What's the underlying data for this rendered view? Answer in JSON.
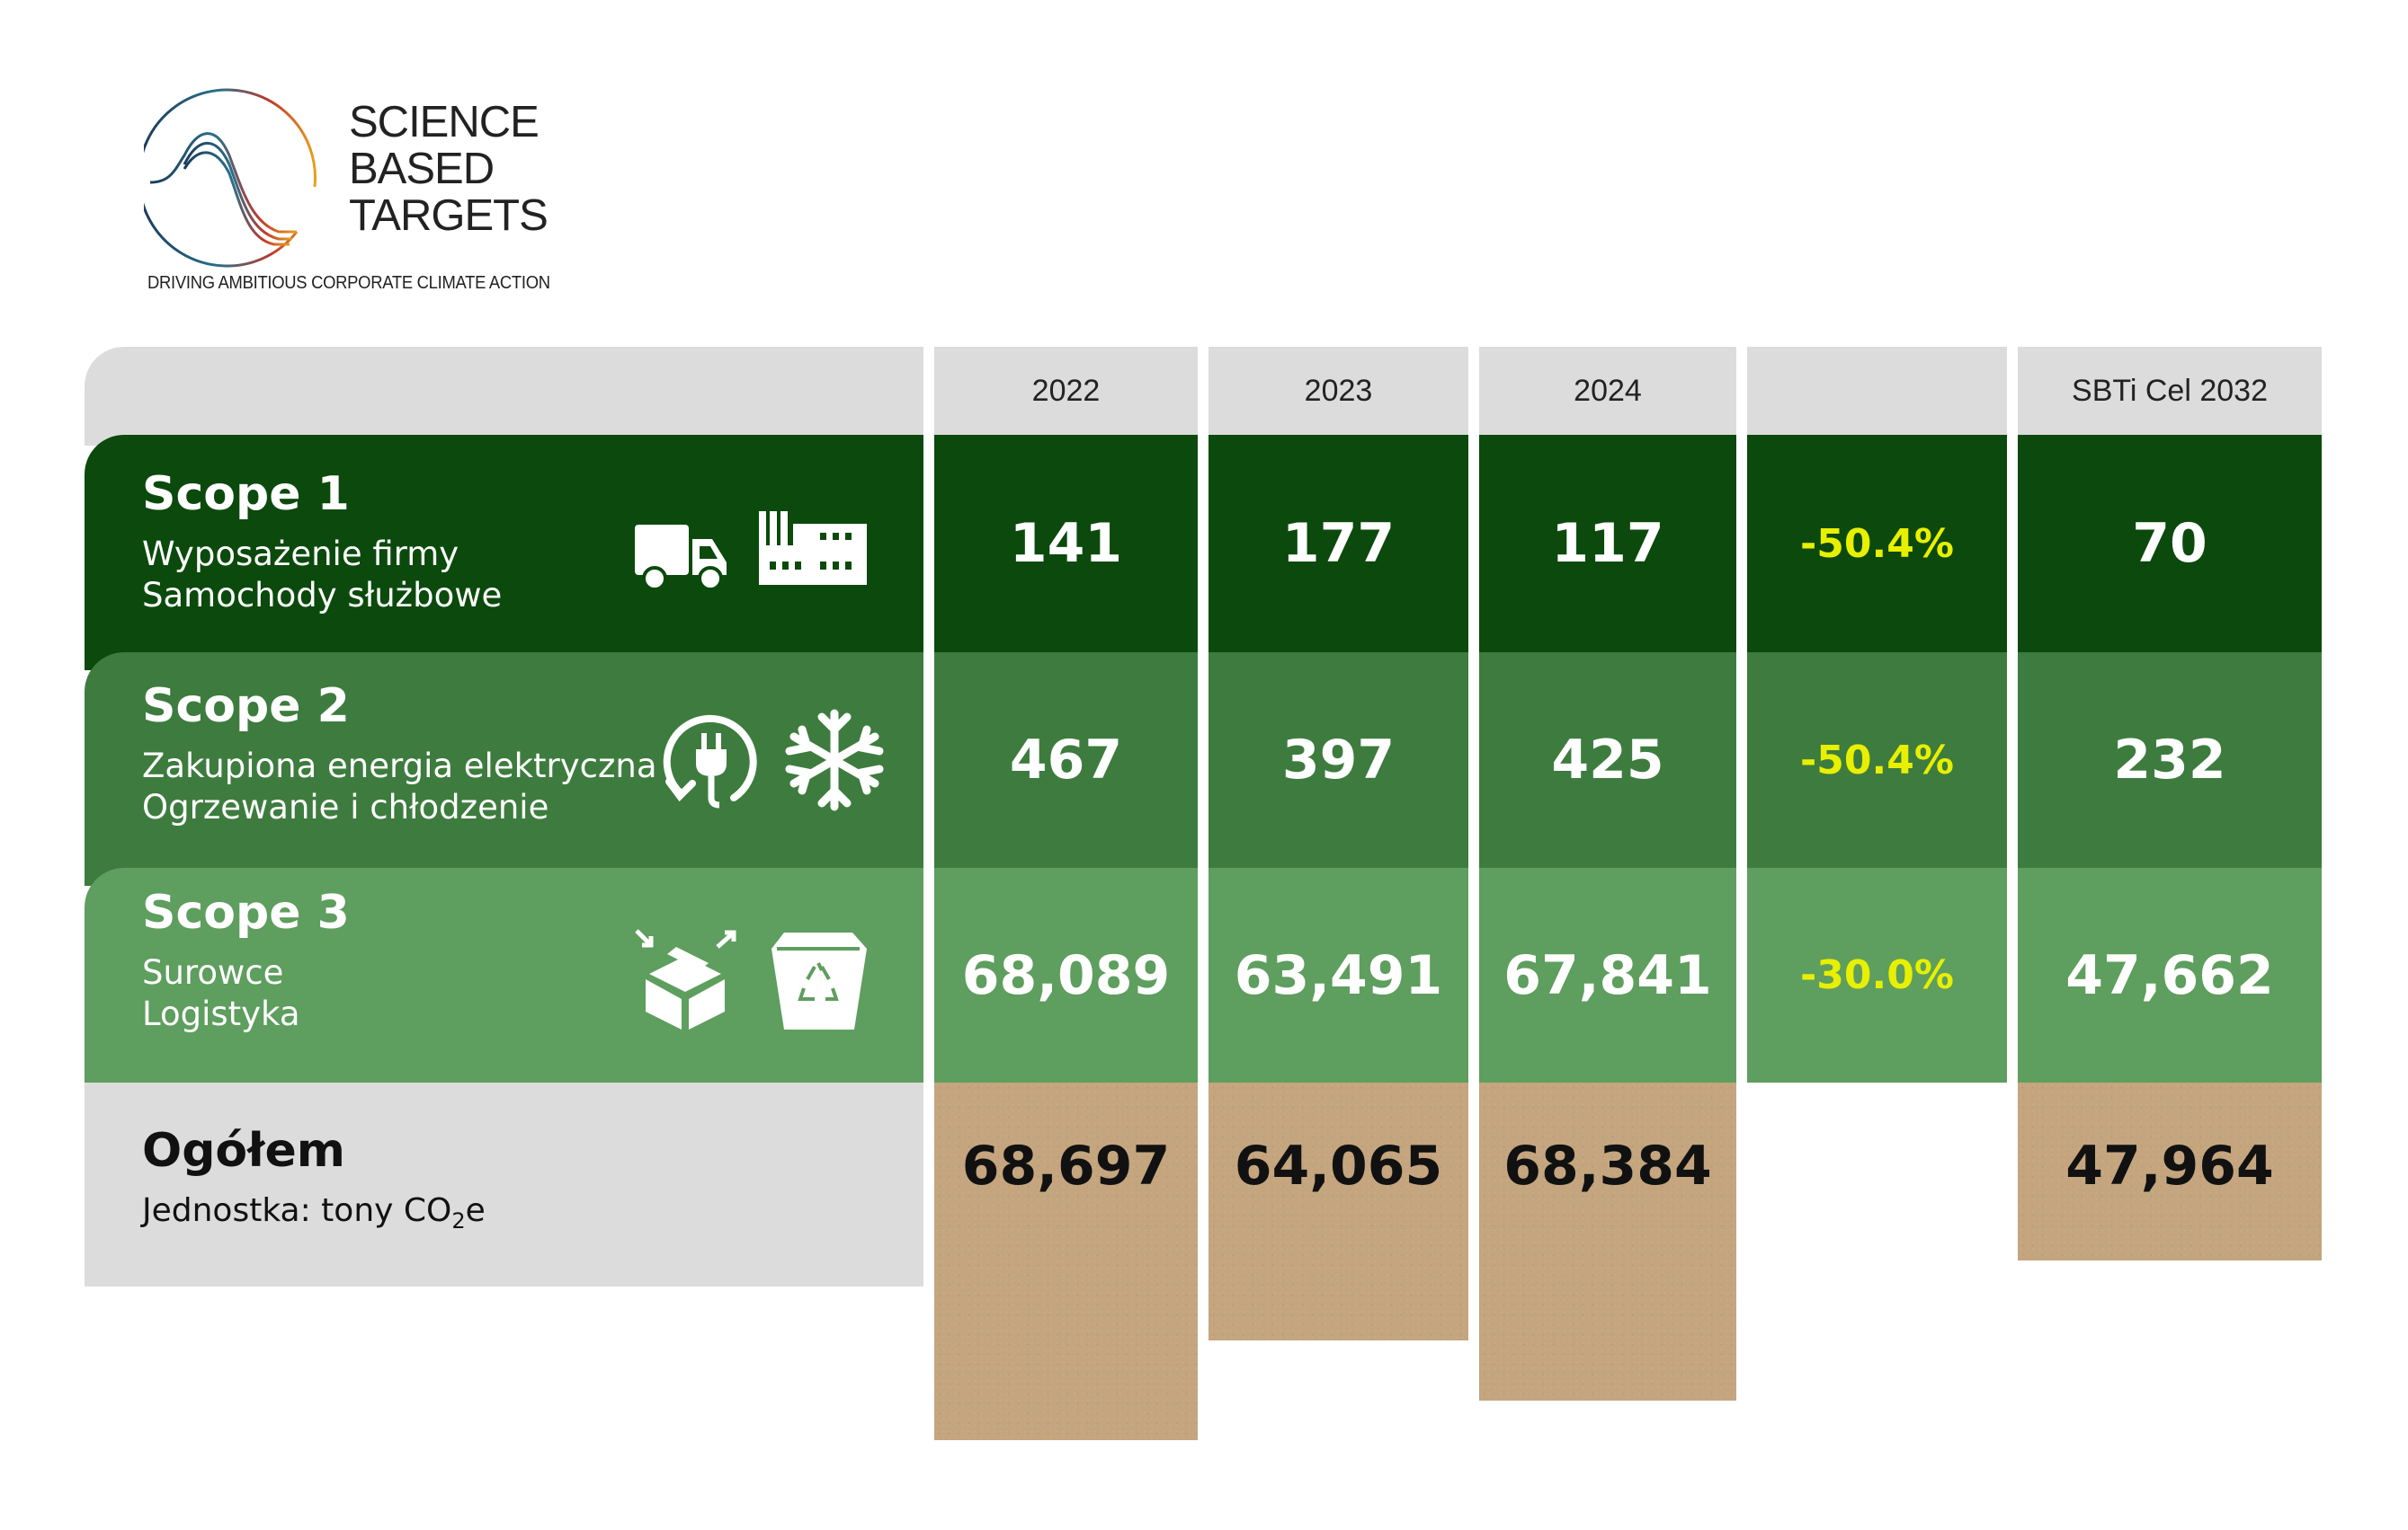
{
  "logo": {
    "lines": [
      "SCIENCE",
      "BASED",
      "TARGETS"
    ],
    "tagline": "DRIVING AMBITIOUS CORPORATE CLIMATE ACTION"
  },
  "columns": [
    "2022",
    "2023",
    "2024",
    "",
    "SBTi Cel 2032"
  ],
  "rows": [
    {
      "title": "Scope 1",
      "lines": [
        "Wyposażenie firmy",
        "Samochody służbowe"
      ],
      "icons": [
        "truck-icon",
        "factory-icon"
      ],
      "values": [
        "141",
        "177",
        "117"
      ],
      "change": "-50.4%",
      "target": "70",
      "color": "#0b4a0c"
    },
    {
      "title": "Scope 2",
      "lines": [
        "Zakupiona energia elektryczna",
        "Ogrzewanie i chłodzenie"
      ],
      "icons": [
        "plug-cycle-icon",
        "snowflake-icon"
      ],
      "values": [
        "467",
        "397",
        "425"
      ],
      "change": "-50.4%",
      "target": "232",
      "color": "#3d7c3e"
    },
    {
      "title": "Scope 3",
      "lines": [
        "Surowce",
        "Logistyka"
      ],
      "icons": [
        "box-icon",
        "recycle-bin-icon"
      ],
      "values": [
        "68,089",
        "63,491",
        "67,841"
      ],
      "change": "-30.0%",
      "target": "47,662",
      "color": "#5e9e5e"
    }
  ],
  "total": {
    "title": "Ogółem",
    "unit_prefix": "Jednostka: tony CO",
    "unit_sub": "2",
    "unit_suffix": "e",
    "values": [
      "68,697",
      "64,065",
      "68,384"
    ],
    "target": "47,964"
  },
  "colors": {
    "change_text": "#e8f000",
    "kraft": "#c4a57e",
    "header": "#dcdcdc"
  }
}
